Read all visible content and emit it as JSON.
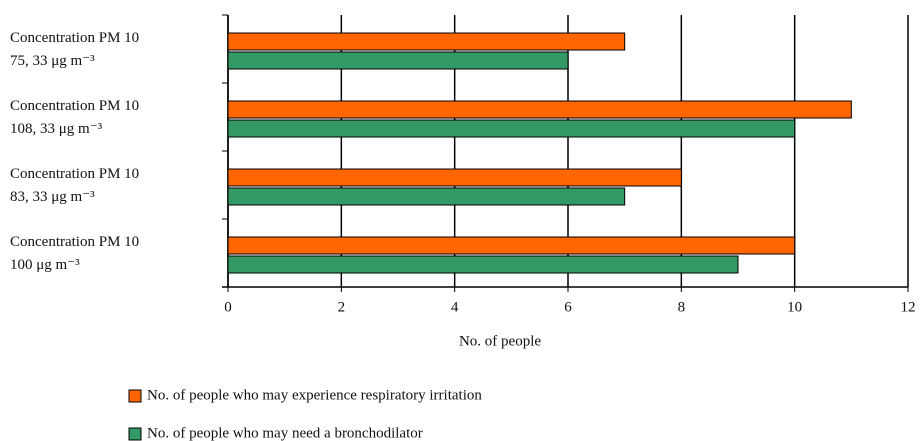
{
  "chart_data": {
    "type": "barh",
    "categories": [
      [
        "Concentration PM 10",
        "75, 33  μg m⁻³"
      ],
      [
        "Concentration PM 10",
        "108, 33  μg m⁻³"
      ],
      [
        "Concentration PM 10",
        "83, 33  μg m⁻³"
      ],
      [
        "Concentration PM 10",
        "100  μg m⁻³"
      ]
    ],
    "series": [
      {
        "name": "No. of people who may experience respiratory irritation",
        "color": "#ff6600",
        "values": [
          7,
          11,
          8,
          10
        ]
      },
      {
        "name": "No. of people who may need a bronchodilator",
        "color": "#339966",
        "values": [
          6,
          10,
          7,
          9
        ]
      }
    ],
    "xlabel": "No. of people",
    "xlim": [
      0,
      12
    ],
    "xticks": [
      0,
      2,
      4,
      6,
      8,
      10,
      12
    ],
    "grid": true,
    "legend": "bottom"
  }
}
